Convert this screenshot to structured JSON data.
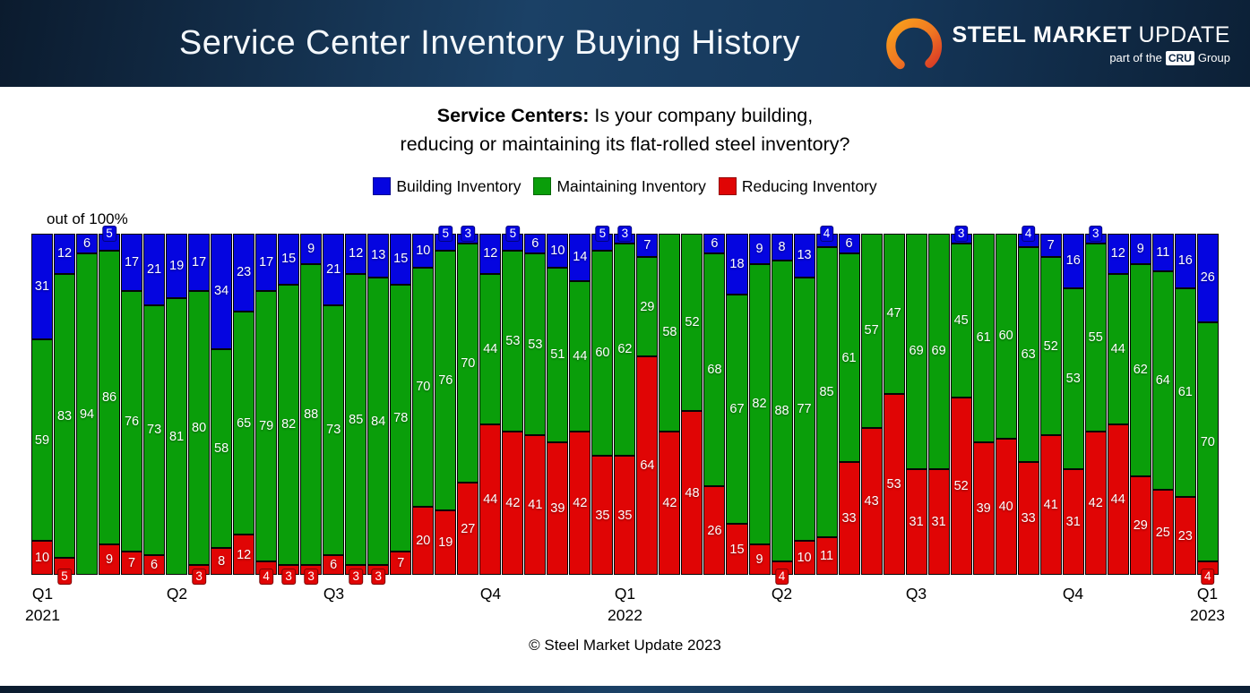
{
  "header": {
    "title": "Service Center Inventory Buying History",
    "logo": {
      "name_part1": "STEEL",
      "name_part2": "MARKET",
      "name_part3": "UPDATE",
      "tagline_prefix": "part of the",
      "tagline_box": "CRU",
      "tagline_suffix": "Group"
    }
  },
  "question": {
    "lead": "Service Centers:",
    "line1_rest": " Is your company building,",
    "line2": "reducing or maintaining its flat-rolled steel inventory?"
  },
  "legend": [
    {
      "key": "building",
      "label": "Building Inventory",
      "color": "#0505e0"
    },
    {
      "key": "maintaining",
      "label": "Maintaining Inventory",
      "color": "#0a9e0a"
    },
    {
      "key": "reducing",
      "label": "Reducing Inventory",
      "color": "#e00505"
    }
  ],
  "axis_note": "out of 100%",
  "footer": "© Steel Market Update 2023",
  "chart_data": {
    "type": "bar",
    "stacked": true,
    "percent_total": 100,
    "num_bars": 53,
    "title": "Service Centers: Is your company building, reducing or maintaining its flat-rolled steel inventory?",
    "ylabel": "out of 100%",
    "ylim": [
      0,
      100
    ],
    "grid": false,
    "legend_position": "top",
    "series": [
      {
        "name": "Building Inventory",
        "key": "building",
        "color": "#0505e0",
        "values": [
          31,
          12,
          6,
          5,
          17,
          21,
          19,
          17,
          34,
          23,
          17,
          15,
          9,
          21,
          12,
          13,
          15,
          10,
          5,
          3,
          12,
          5,
          6,
          10,
          14,
          5,
          3,
          7,
          0,
          0,
          6,
          18,
          9,
          8,
          13,
          4,
          6,
          0,
          0,
          0,
          0,
          3,
          0,
          0,
          4,
          7,
          16,
          3,
          12,
          9,
          11,
          16,
          26
        ]
      },
      {
        "name": "Maintaining Inventory",
        "key": "maintaining",
        "color": "#0a9e0a",
        "values": [
          59,
          83,
          94,
          86,
          76,
          73,
          81,
          80,
          58,
          65,
          79,
          82,
          88,
          73,
          85,
          84,
          78,
          70,
          76,
          70,
          44,
          53,
          53,
          51,
          44,
          60,
          62,
          29,
          58,
          52,
          68,
          67,
          82,
          88,
          77,
          85,
          61,
          57,
          47,
          69,
          69,
          45,
          61,
          60,
          63,
          52,
          53,
          55,
          44,
          62,
          64,
          61,
          70
        ]
      },
      {
        "name": "Reducing Inventory",
        "key": "reducing",
        "color": "#e00505",
        "values": [
          10,
          5,
          0,
          9,
          7,
          6,
          0,
          3,
          8,
          12,
          4,
          3,
          3,
          6,
          3,
          3,
          7,
          20,
          19,
          27,
          44,
          42,
          41,
          39,
          42,
          35,
          35,
          64,
          42,
          48,
          26,
          15,
          9,
          4,
          10,
          11,
          33,
          43,
          53,
          31,
          31,
          52,
          39,
          40,
          33,
          41,
          31,
          42,
          44,
          29,
          25,
          23,
          4
        ]
      }
    ],
    "x_ticks": [
      {
        "bar_index": 0,
        "label": "Q1",
        "year": "2021"
      },
      {
        "bar_index": 6,
        "label": "Q2"
      },
      {
        "bar_index": 13,
        "label": "Q3"
      },
      {
        "bar_index": 20,
        "label": "Q4"
      },
      {
        "bar_index": 26,
        "label": "Q1",
        "year": "2022"
      },
      {
        "bar_index": 33,
        "label": "Q2"
      },
      {
        "bar_index": 39,
        "label": "Q3"
      },
      {
        "bar_index": 46,
        "label": "Q4"
      },
      {
        "bar_index": 52,
        "label": "Q1",
        "year": "2023"
      }
    ]
  }
}
